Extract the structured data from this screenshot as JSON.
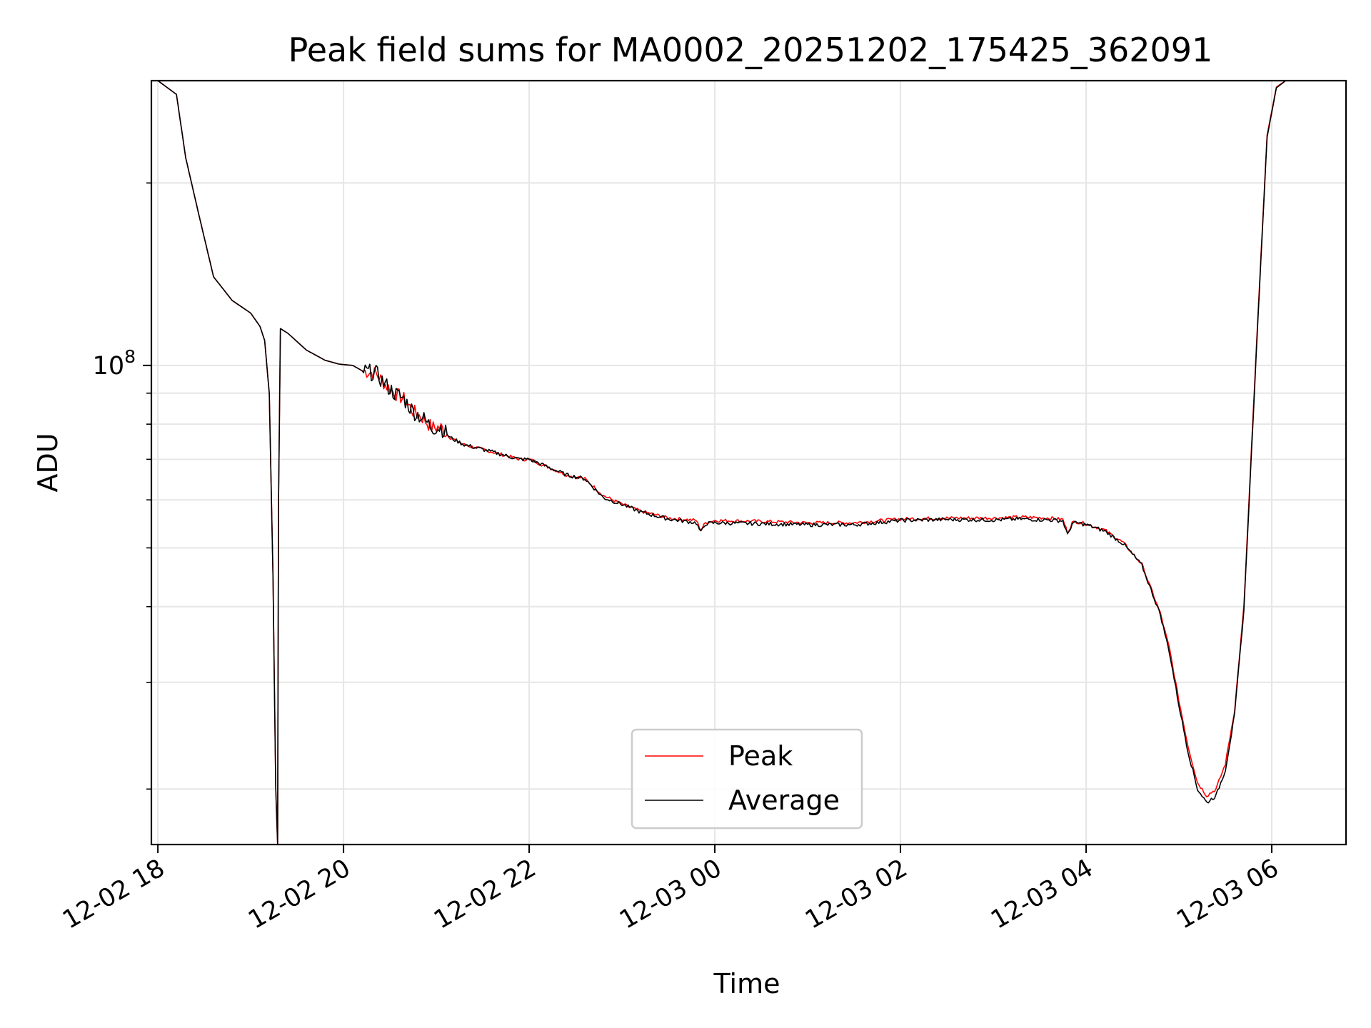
{
  "chart_data": {
    "type": "line",
    "title": "Peak field sums for MA0002_20251202_175425_362091",
    "xlabel": "Time",
    "ylabel": "ADU",
    "y_scale": "log",
    "ylim": [
      16200000,
      295000000
    ],
    "xlim_hours": [
      -0.07,
      12.8
    ],
    "x_ticks": [
      {
        "hour": 0,
        "label": "12-02 18"
      },
      {
        "hour": 2,
        "label": "12-02 20"
      },
      {
        "hour": 4,
        "label": "12-02 22"
      },
      {
        "hour": 6,
        "label": "12-03 00"
      },
      {
        "hour": 8,
        "label": "12-03 02"
      },
      {
        "hour": 10,
        "label": "12-03 04"
      },
      {
        "hour": 12,
        "label": "12-03 06"
      }
    ],
    "y_major_tick": {
      "value": 100000000,
      "base": "10",
      "exponent": "8"
    },
    "y_minor_ticks": [
      20000000,
      30000000,
      40000000,
      50000000,
      60000000,
      70000000,
      80000000,
      90000000,
      200000000
    ],
    "grid": true,
    "legend": {
      "location": "lower center",
      "entries": [
        "Peak",
        "Average"
      ]
    },
    "series": [
      {
        "name": "Peak",
        "color": "#ff0000",
        "x_hours": [
          0,
          0.2,
          0.3,
          0.45,
          0.6,
          0.8,
          1.0,
          1.1,
          1.15,
          1.2,
          1.24,
          1.27,
          1.29,
          1.3,
          1.32,
          1.4,
          1.6,
          1.8,
          1.95,
          2.1,
          2.2,
          2.35,
          2.45,
          2.55,
          2.65,
          2.75,
          2.85,
          2.95,
          3.05,
          3.15,
          3.3,
          3.6,
          3.9,
          4.0,
          4.2,
          4.4,
          4.6,
          4.8,
          5.0,
          5.2,
          5.5,
          5.8,
          5.85,
          5.9,
          6.0,
          6.5,
          7.0,
          7.5,
          8.0,
          8.5,
          9.0,
          9.3,
          9.6,
          9.75,
          9.8,
          9.85,
          9.9,
          10.0,
          10.2,
          10.4,
          10.6,
          10.8,
          10.9,
          11.0,
          11.1,
          11.2,
          11.3,
          11.4,
          11.5,
          11.6,
          11.7,
          11.85,
          11.95,
          12.05,
          12.15,
          12.25,
          12.4,
          12.5,
          12.8
        ],
        "values": [
          295000000,
          280000000,
          220000000,
          175000000,
          140000000,
          128000000,
          122000000,
          116000000,
          110000000,
          90000000,
          45000000,
          20000000,
          16200000,
          60000000,
          115000000,
          113000000,
          106000000,
          102000000,
          100500000,
          100000000,
          98000000,
          97000000,
          93000000,
          90000000,
          88000000,
          84000000,
          82000000,
          79000000,
          79000000,
          76000000,
          74000000,
          72000000,
          70000000,
          70000000,
          68000000,
          66000000,
          65000000,
          61000000,
          59000000,
          57500000,
          56000000,
          55500000,
          53500000,
          55000000,
          55500000,
          55300000,
          55000000,
          55000000,
          55800000,
          56000000,
          56000000,
          56200000,
          56000000,
          55700000,
          53000000,
          55000000,
          55200000,
          54800000,
          53500000,
          51000000,
          47000000,
          39000000,
          34000000,
          28000000,
          23500000,
          20500000,
          19500000,
          20000000,
          22000000,
          27000000,
          40000000,
          120000000,
          240000000,
          288000000,
          295000000,
          295000000,
          295000000,
          295000000,
          295000000
        ]
      },
      {
        "name": "Average",
        "color": "#000000",
        "x_hours": [
          0,
          0.2,
          0.3,
          0.45,
          0.6,
          0.8,
          1.0,
          1.1,
          1.15,
          1.2,
          1.24,
          1.27,
          1.29,
          1.3,
          1.32,
          1.4,
          1.6,
          1.8,
          1.95,
          2.1,
          2.2,
          2.35,
          2.45,
          2.55,
          2.65,
          2.75,
          2.85,
          2.95,
          3.05,
          3.15,
          3.3,
          3.6,
          3.9,
          4.0,
          4.2,
          4.4,
          4.6,
          4.8,
          5.0,
          5.2,
          5.5,
          5.8,
          5.85,
          5.9,
          6.0,
          6.5,
          7.0,
          7.5,
          8.0,
          8.5,
          9.0,
          9.3,
          9.6,
          9.75,
          9.8,
          9.85,
          9.9,
          10.0,
          10.2,
          10.4,
          10.6,
          10.8,
          10.9,
          11.0,
          11.1,
          11.2,
          11.3,
          11.4,
          11.5,
          11.6,
          11.7,
          11.85,
          11.95,
          12.05,
          12.15,
          12.25,
          12.4,
          12.5,
          12.8
        ],
        "values": [
          295000000,
          280000000,
          220000000,
          175000000,
          140000000,
          128000000,
          122000000,
          116000000,
          110000000,
          90000000,
          45000000,
          20000000,
          16200000,
          60000000,
          115000000,
          113000000,
          106000000,
          102000000,
          100500000,
          100000000,
          98000000,
          97000000,
          93000000,
          90000000,
          88000000,
          84000000,
          82000000,
          79000000,
          79000000,
          76000000,
          74000000,
          72000000,
          70000000,
          70000000,
          68000000,
          66000000,
          65000000,
          60500000,
          59000000,
          57300000,
          55800000,
          55000000,
          53000000,
          54800000,
          55000000,
          54800000,
          54600000,
          54600000,
          55500000,
          55700000,
          55600000,
          55800000,
          55600000,
          55400000,
          52500000,
          54800000,
          55000000,
          54600000,
          53300000,
          50800000,
          46800000,
          38800000,
          33500000,
          27500000,
          23000000,
          20000000,
          19000000,
          19500000,
          21500000,
          26500000,
          39500000,
          118000000,
          238000000,
          287000000,
          295000000,
          295000000,
          295000000,
          295000000,
          295000000
        ]
      }
    ]
  }
}
